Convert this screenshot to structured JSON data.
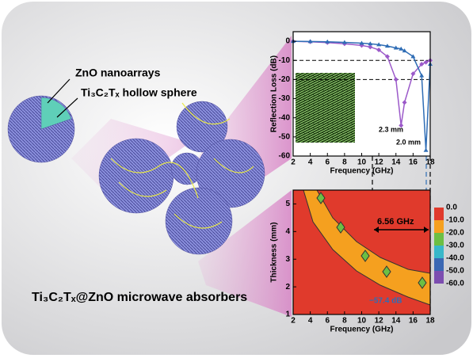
{
  "labels": {
    "nanoarrays": "ZnO nanoarrays",
    "sphere": "Ti₃C₂Tₓ hollow sphere",
    "absorbers": "Ti₃C₂Tₓ@ZnO microwave absorbers"
  },
  "chart_data": [
    {
      "type": "line",
      "xlabel": "Frequency (GHz)",
      "ylabel": "Reflection Loss (dB)",
      "x": [
        2,
        4,
        6,
        8,
        10,
        11,
        12,
        13,
        14,
        14.6,
        15,
        16,
        17,
        17.5,
        18
      ],
      "series": [
        {
          "name": "2.3 mm",
          "color": "#9b59c9",
          "marker": "diamond",
          "values": [
            0,
            -0.3,
            -0.7,
            -1.3,
            -2.2,
            -3,
            -4.5,
            -8,
            -20,
            -44,
            -32,
            -17,
            -12,
            -11,
            -10
          ]
        },
        {
          "name": "2.0 mm",
          "color": "#2f6db5",
          "marker": "triangle",
          "values": [
            0,
            -0.1,
            -0.3,
            -0.6,
            -1,
            -1.3,
            -1.8,
            -2.5,
            -3.5,
            -4,
            -5,
            -8,
            -18,
            -57,
            -12
          ]
        }
      ],
      "xlim": [
        2,
        18
      ],
      "xticks": [
        2,
        4,
        6,
        8,
        10,
        12,
        14,
        16,
        18
      ],
      "ylim": [
        -60,
        5
      ],
      "yticks": [
        0,
        -10,
        -20,
        -30,
        -40,
        -50,
        -60
      ],
      "ref_lines": [
        -10,
        -20
      ]
    },
    {
      "type": "contour",
      "xlabel": "Frequency (GHz)",
      "ylabel": "Thickness (mm)",
      "xlim": [
        2,
        18
      ],
      "xticks": [
        2,
        4,
        6,
        8,
        10,
        12,
        14,
        16,
        18
      ],
      "ylim": [
        1,
        5.5
      ],
      "yticks": [
        1,
        2,
        3,
        4,
        5
      ],
      "levels": [
        {
          "value": 0,
          "label": "0.0"
        },
        {
          "value": -10,
          "label": "-10.0"
        },
        {
          "value": -20,
          "label": "-20.0"
        },
        {
          "value": -30,
          "label": "-30.0"
        },
        {
          "value": -40,
          "label": "-40.0"
        },
        {
          "value": -50,
          "label": "-50.0"
        },
        {
          "value": -60,
          "label": "-60.0"
        }
      ],
      "colors": [
        "#e03a2c",
        "#f5a01f",
        "#6cbf44",
        "#38b7c9",
        "#3a67b3",
        "#7c4db0"
      ],
      "annotations": [
        "6.56 GHz",
        "−57.4 dB"
      ]
    }
  ]
}
